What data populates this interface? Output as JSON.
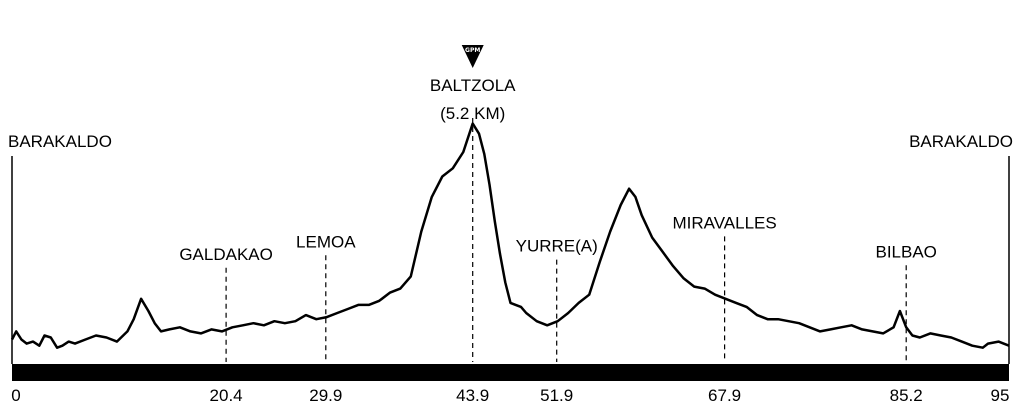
{
  "chart_data": {
    "type": "line",
    "title": "",
    "xlabel": "",
    "ylabel": "",
    "xlim": [
      0,
      95
    ],
    "ylim": [
      0,
      105
    ],
    "grid": false,
    "tick_labels": [
      "0",
      "20.4",
      "29.9",
      "43.9",
      "51.9",
      "67.9",
      "85.2",
      "95"
    ],
    "tick_values": [
      0,
      20.4,
      29.9,
      43.9,
      51.9,
      67.9,
      85.2,
      95
    ],
    "locations": [
      {
        "km": 0,
        "name": "BARAKALDO"
      },
      {
        "km": 20.4,
        "name": "GALDAKAO"
      },
      {
        "km": 29.9,
        "name": "LEMOA"
      },
      {
        "km": 43.9,
        "name": "BALTZOLA",
        "detail": "(5.2 KM)",
        "badge": "GPM"
      },
      {
        "km": 51.9,
        "name": "YURRE(A)"
      },
      {
        "km": 67.9,
        "name": "MIRAVALLES"
      },
      {
        "km": 85.2,
        "name": "BILBAO"
      },
      {
        "km": 95,
        "name": "BARAKALDO"
      }
    ],
    "series": [
      {
        "x": [
          0,
          0.4,
          0.9,
          1.4,
          2.0,
          2.6,
          3.1,
          3.7,
          4.3,
          4.8,
          5.4,
          6.0,
          7.0,
          8.0,
          9.0,
          10.0,
          11.0,
          11.6,
          12.3,
          13.0,
          13.6,
          14.2,
          15.0,
          16.0,
          17.0,
          18.0,
          19.0,
          20.0,
          21.0,
          22.0,
          23.0,
          24.0,
          25.0,
          26.0,
          27.0,
          28.0,
          29.0,
          30.0,
          31.0,
          32.0,
          33.0,
          34.0,
          35.0,
          36.0,
          37.0,
          38.0,
          39.0,
          40.0,
          41.0,
          42.0,
          43.0,
          43.9,
          44.5,
          45.0,
          45.5,
          46.0,
          46.5,
          47.0,
          47.5,
          48.0,
          48.5,
          49.0,
          50.0,
          51.0,
          52.0,
          53.0,
          54.0,
          55.0,
          56.0,
          57.0,
          58.0,
          58.8,
          59.4,
          60.0,
          61.0,
          62.0,
          63.0,
          64.0,
          65.0,
          66.0,
          67.0,
          68.0,
          69.0,
          70.0,
          71.0,
          72.0,
          73.0,
          74.0,
          75.0,
          76.0,
          77.0,
          78.0,
          79.0,
          80.0,
          81.0,
          82.0,
          83.0,
          84.0,
          84.6,
          85.2,
          85.8,
          86.5,
          87.5,
          88.5,
          89.5,
          90.5,
          91.5,
          92.5,
          93.0,
          94.0,
          95.0
        ],
        "y": [
          12,
          16,
          12,
          10,
          11,
          9,
          14,
          13,
          8,
          9,
          11,
          10,
          12,
          14,
          13,
          11,
          16,
          22,
          32,
          26,
          20,
          16,
          17,
          18,
          16,
          15,
          17,
          16,
          18,
          19,
          20,
          19,
          21,
          20,
          21,
          24,
          22,
          23,
          25,
          27,
          29,
          29,
          31,
          35,
          37,
          43,
          65,
          82,
          92,
          96,
          104,
          118,
          113,
          103,
          88,
          70,
          54,
          40,
          30,
          29,
          28,
          25,
          21,
          19,
          21,
          25,
          30,
          34,
          50,
          65,
          78,
          86,
          82,
          73,
          62,
          55,
          48,
          42,
          38,
          37,
          34,
          32,
          30,
          28,
          24,
          22,
          22,
          21,
          20,
          18,
          16,
          17,
          18,
          19,
          17,
          16,
          15,
          18,
          26,
          18,
          14,
          13,
          15,
          14,
          13,
          11,
          9,
          8,
          10,
          11,
          9
        ]
      }
    ]
  }
}
